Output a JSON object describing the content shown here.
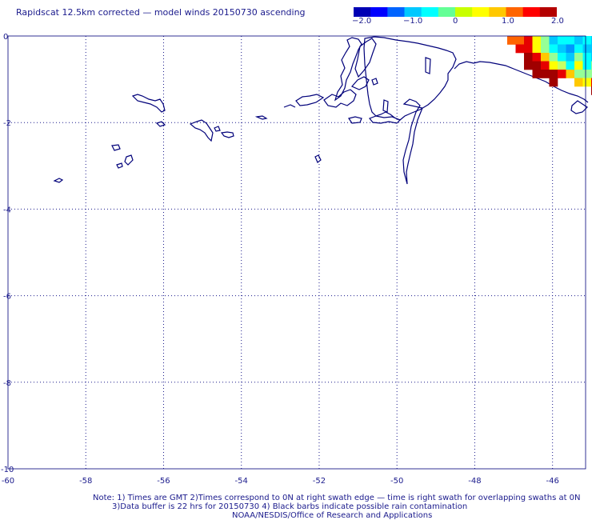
{
  "title": "Rapidscat 12.5km corrected — model winds 20150730 ascending",
  "colorbar": {
    "labels": [
      "−2.0",
      "−1.0",
      "0",
      "1.0",
      "2.0"
    ],
    "values": [
      -2.0,
      -1.0,
      0,
      1.0,
      2.0
    ],
    "colors": [
      "#0000b4",
      "#0000ff",
      "#0064ff",
      "#00c8ff",
      "#00ffff",
      "#64ff96",
      "#c8ff00",
      "#ffff00",
      "#ffc800",
      "#ff6400",
      "#ff0000",
      "#b40000"
    ]
  },
  "map": {
    "x_ticks": [
      -60,
      -58,
      -56,
      -54,
      -52,
      -50,
      -48,
      -46
    ],
    "x_tick_labels": [
      "-60",
      "-58",
      "-56",
      "-54",
      "-52",
      "-50",
      "-48",
      "-46"
    ],
    "y_ticks": [
      0,
      -2,
      -4,
      -6,
      -8,
      -10
    ],
    "y_tick_labels": [
      "0",
      "-2",
      "-4",
      "-6",
      "-8",
      "-10"
    ],
    "xlim": [
      -60,
      -45
    ],
    "ylim": [
      -10,
      0
    ],
    "grid": "dotted",
    "coast_color": "#00007a"
  },
  "footnotes": {
    "line1": "Note: 1) Times are GMT 2)Times correspond to 0N at right swath edge — time is right swath for overlapping swaths at 0N",
    "line2": "3)Data buffer is 22 hrs for 20150730 4) Black barbs indicate possible rain contamination",
    "line3": "NOAA/NESDIS/Office of Research and Applications"
  }
}
